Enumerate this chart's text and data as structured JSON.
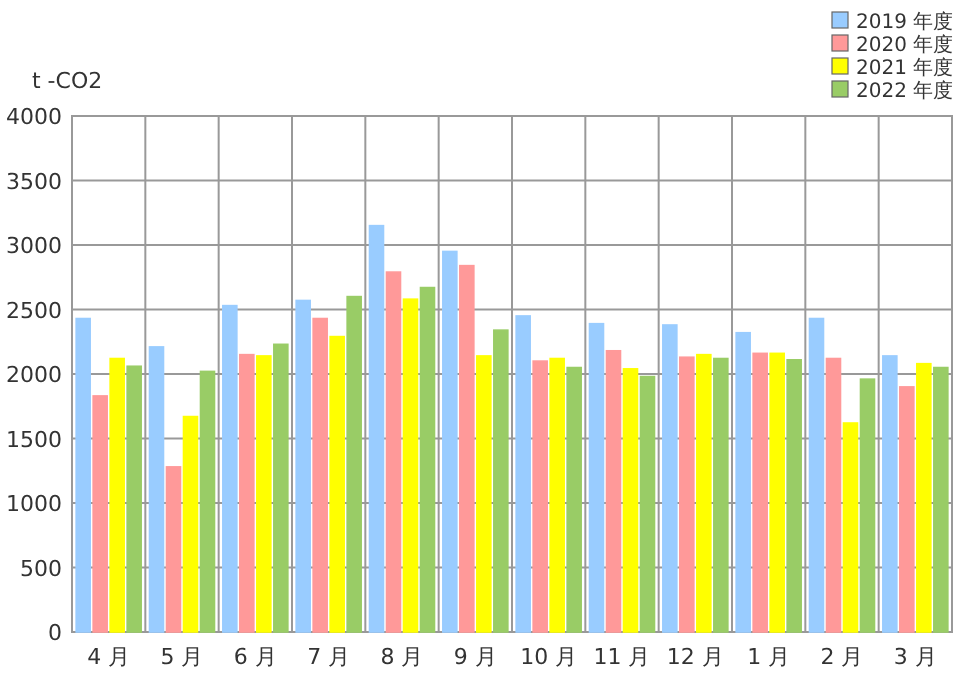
{
  "chart_data": {
    "type": "bar",
    "ylabel": "t -CO2",
    "categories": [
      "4 月",
      "5 月",
      "6 月",
      "7 月",
      "8 月",
      "9 月",
      "10 月",
      "11 月",
      "12 月",
      "1 月",
      "2 月",
      "3 月"
    ],
    "series": [
      {
        "name": "2019 年度",
        "color": "#99ccff",
        "values": [
          2430,
          2210,
          2530,
          2570,
          3150,
          2950,
          2450,
          2390,
          2380,
          2320,
          2430,
          2140
        ]
      },
      {
        "name": "2020 年度",
        "color": "#ff9999",
        "values": [
          1830,
          1280,
          2150,
          2430,
          2790,
          2840,
          2100,
          2180,
          2130,
          2160,
          2120,
          1900
        ]
      },
      {
        "name": "2021 年度",
        "color": "#ffff00",
        "values": [
          2120,
          1670,
          2140,
          2290,
          2580,
          2140,
          2120,
          2040,
          2150,
          2160,
          1620,
          2080
        ]
      },
      {
        "name": "2022 年度",
        "color": "#99cc66",
        "values": [
          2060,
          2020,
          2230,
          2600,
          2670,
          2340,
          2050,
          1980,
          2120,
          2110,
          1960,
          2050
        ]
      }
    ],
    "ylim": [
      0,
      4000
    ],
    "yticks": [
      0,
      500,
      1000,
      1500,
      2000,
      2500,
      3000,
      3500,
      4000
    ],
    "grid": true,
    "legend": "top right"
  }
}
